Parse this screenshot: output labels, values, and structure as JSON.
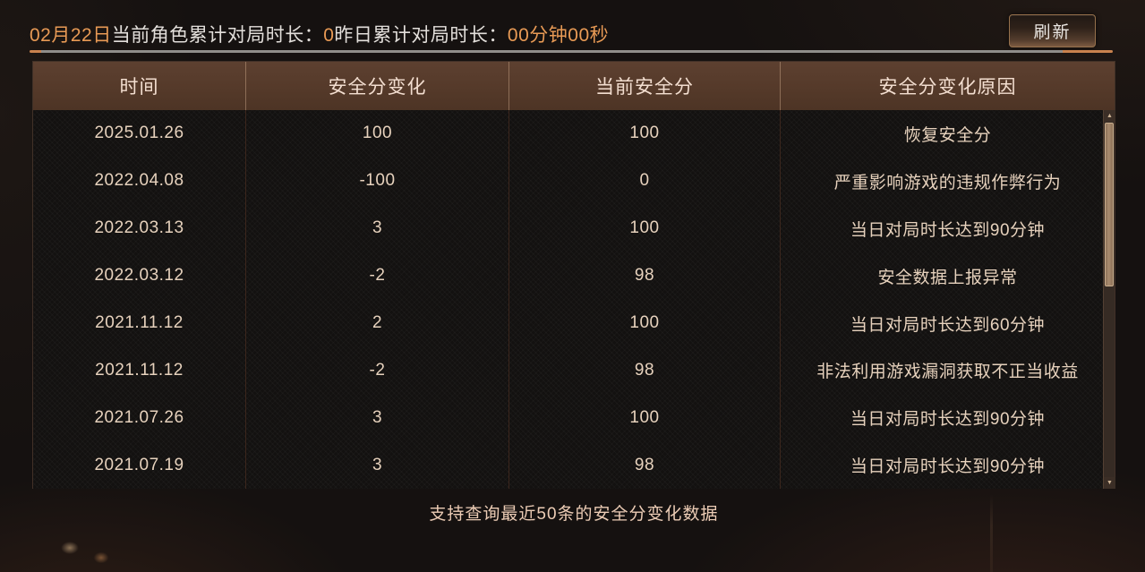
{
  "header": {
    "date_label": "02月22日",
    "today_label": "当前角色累计对局时长：",
    "today_value": "0",
    "yesterday_label": "昨日累计对局时长：",
    "yesterday_value": "00分钟00秒",
    "refresh_label": "刷新"
  },
  "table": {
    "columns": [
      "时间",
      "安全分变化",
      "当前安全分",
      "安全分变化原因"
    ],
    "rows": [
      [
        "2025.01.26",
        "100",
        "100",
        "恢复安全分"
      ],
      [
        "2022.04.08",
        "-100",
        "0",
        "严重影响游戏的违规作弊行为"
      ],
      [
        "2022.03.13",
        "3",
        "100",
        "当日对局时长达到90分钟"
      ],
      [
        "2022.03.12",
        "-2",
        "98",
        "安全数据上报异常"
      ],
      [
        "2021.11.12",
        "2",
        "100",
        "当日对局时长达到60分钟"
      ],
      [
        "2021.11.12",
        "-2",
        "98",
        "非法利用游戏漏洞获取不正当收益"
      ],
      [
        "2021.07.26",
        "3",
        "100",
        "当日对局时长达到90分钟"
      ],
      [
        "2021.07.19",
        "3",
        "98",
        "当日对局时长达到90分钟"
      ]
    ]
  },
  "footer": {
    "note": "支持查询最近50条的安全分变化数据"
  },
  "icons": {
    "scroll_up": "▲",
    "scroll_down": "▼"
  },
  "colors": {
    "accent_orange": "#e89a55",
    "header_brown": "#543929",
    "body_text": "#e7d2bd",
    "divider_gray": "#8f8d8a"
  }
}
